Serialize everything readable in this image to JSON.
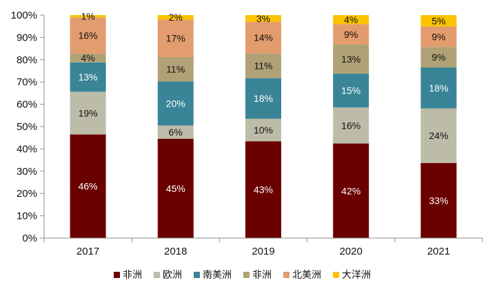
{
  "chart_data": {
    "type": "bar",
    "stacked": true,
    "categories": [
      "2017",
      "2018",
      "2019",
      "2020",
      "2021"
    ],
    "ylim": [
      0,
      100
    ],
    "yticks": [
      "0%",
      "10%",
      "20%",
      "30%",
      "40%",
      "50%",
      "60%",
      "70%",
      "80%",
      "90%",
      "100%"
    ],
    "legend_position": "bottom",
    "series": [
      {
        "name": "非洲",
        "color": "#6b0000",
        "label_color": "#ffffff",
        "values": [
          46,
          45,
          43,
          42,
          33
        ],
        "labels": [
          "46%",
          "45%",
          "43%",
          "42%",
          "33%"
        ]
      },
      {
        "name": "欧洲",
        "color": "#bcbca9",
        "label_color": "#111111",
        "values": [
          19,
          6,
          10,
          16,
          24
        ],
        "labels": [
          "19%",
          "6%",
          "10%",
          "16%",
          "24%"
        ]
      },
      {
        "name": "南美洲",
        "color": "#3a8497",
        "label_color": "#ffffff",
        "values": [
          13,
          20,
          18,
          15,
          18
        ],
        "labels": [
          "13%",
          "20%",
          "18%",
          "15%",
          "18%"
        ]
      },
      {
        "name": "非洲",
        "color": "#b0a276",
        "label_color": "#111111",
        "values": [
          4,
          11,
          11,
          13,
          9
        ],
        "labels": [
          "4%",
          "11%",
          "11%",
          "13%",
          "9%"
        ]
      },
      {
        "name": "北美洲",
        "color": "#e39c6d",
        "label_color": "#111111",
        "values": [
          16,
          17,
          14,
          9,
          9
        ],
        "labels": [
          "16%",
          "17%",
          "14%",
          "9%",
          "9%"
        ]
      },
      {
        "name": "大洋洲",
        "color": "#fcc300",
        "label_color": "#111111",
        "values": [
          1,
          2,
          3,
          4,
          5
        ],
        "labels": [
          "1%",
          "2%",
          "3%",
          "4%",
          "5%"
        ]
      }
    ]
  }
}
